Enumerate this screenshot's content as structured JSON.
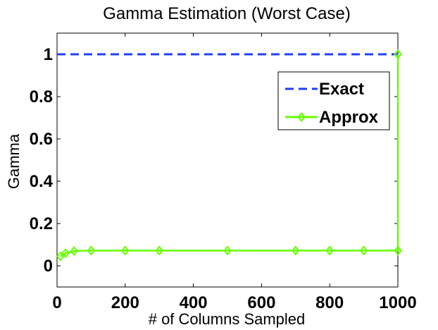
{
  "chart_data": {
    "type": "line",
    "title": "Gamma Estimation (Worst Case)",
    "xlabel": "# of Columns Sampled",
    "ylabel": "Gamma",
    "xlim": [
      0,
      1000
    ],
    "ylim": [
      -0.1,
      1.1
    ],
    "xticks": [
      0,
      200,
      400,
      600,
      800,
      1000
    ],
    "yticks": [
      0,
      0.2,
      0.4,
      0.6,
      0.8,
      1
    ],
    "xtick_labels": [
      "0",
      "200",
      "400",
      "600",
      "800",
      "1000"
    ],
    "ytick_labels": [
      "0",
      "0.2",
      "0.4",
      "0.6",
      "0.8",
      "1"
    ],
    "grid": false,
    "legend_position": "top-right",
    "series": [
      {
        "name": "Exact",
        "color": "#1f3fff",
        "style": "dashed",
        "x": [
          0,
          1000
        ],
        "y": [
          1,
          1
        ]
      },
      {
        "name": "Approx",
        "color": "#66ff00",
        "style": "solid",
        "marker": "diamond",
        "x": [
          10,
          25,
          50,
          100,
          200,
          300,
          500,
          700,
          800,
          900,
          1000,
          1000
        ],
        "y": [
          0.045,
          0.06,
          0.07,
          0.072,
          0.072,
          0.072,
          0.072,
          0.072,
          0.072,
          0.072,
          0.072,
          1.0
        ]
      }
    ]
  }
}
